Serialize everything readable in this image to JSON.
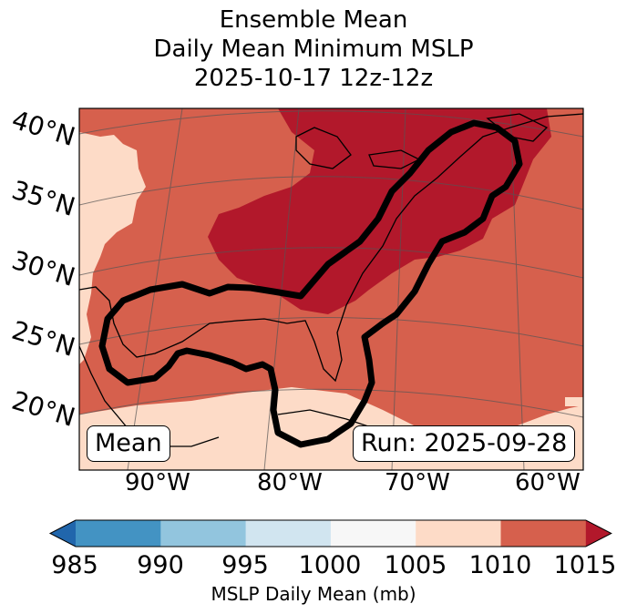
{
  "title": {
    "line1": "Ensemble Mean",
    "line2": "Daily Mean Minimum MSLP",
    "line3": "2025-10-17 12z-12z"
  },
  "map": {
    "lat_labels": [
      "40°N",
      "35°N",
      "30°N",
      "25°N",
      "20°N"
    ],
    "lon_labels": [
      "90°W",
      "80°W",
      "70°W",
      "60°W"
    ],
    "legend_box": "Mean",
    "run_box": "Run: 2025-09-28",
    "colors": {
      "c1005_1010": "#fddbc7",
      "c1010_1015": "#d6604d",
      "c1015_plus": "#b2182b"
    }
  },
  "colorbar": {
    "ticks": [
      "985",
      "990",
      "995",
      "1000",
      "1005",
      "1010",
      "1015"
    ],
    "label": "MSLP Daily Mean (mb)",
    "bins": [
      {
        "range": "<985",
        "color": "#2166ac"
      },
      {
        "range": "985-990",
        "color": "#4393c3"
      },
      {
        "range": "990-995",
        "color": "#92c5de"
      },
      {
        "range": "995-1000",
        "color": "#d1e5f0"
      },
      {
        "range": "1000-1005",
        "color": "#f7f7f7"
      },
      {
        "range": "1005-1010",
        "color": "#fddbc7"
      },
      {
        "range": "1010-1015",
        "color": "#d6604d"
      },
      {
        "range": ">1015",
        "color": "#b2182b"
      }
    ]
  }
}
